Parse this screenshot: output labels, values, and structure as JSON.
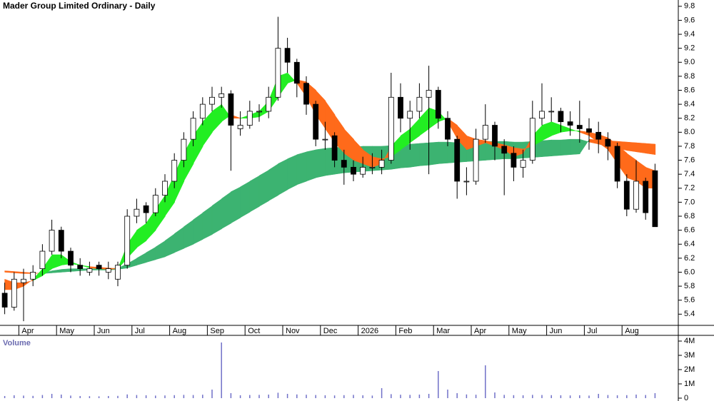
{
  "chart_data": [
    {
      "type": "candlestick",
      "title": "Mader Group Limited Ordinary - Daily",
      "categories": [
        null,
        null,
        "Apr",
        null,
        null,
        null,
        "May",
        null,
        null,
        null,
        "Jun",
        null,
        null,
        null,
        "Jul",
        null,
        null,
        null,
        "Aug",
        null,
        null,
        null,
        "Sep",
        null,
        null,
        null,
        "Oct",
        null,
        null,
        null,
        "Nov",
        null,
        null,
        null,
        "Dec",
        null,
        null,
        null,
        "2026",
        null,
        null,
        null,
        "Feb",
        null,
        null,
        null,
        "Mar",
        null,
        null,
        null,
        "Apr",
        null,
        null,
        null,
        "May",
        null,
        null,
        null,
        "Jun",
        null,
        null,
        null,
        "Jul",
        null,
        null,
        null,
        "Aug",
        null,
        null,
        null
      ],
      "open": [
        5.7,
        5.5,
        5.85,
        5.9,
        6.05,
        6.3,
        6.6,
        6.3,
        6.1,
        6.0,
        6.1,
        6.0,
        5.9,
        6.1,
        6.8,
        6.95,
        6.85,
        7.1,
        7.3,
        7.6,
        7.9,
        8.2,
        8.4,
        8.5,
        8.55,
        8.05,
        8.1,
        8.3,
        8.3,
        8.5,
        9.2,
        9.0,
        8.7,
        8.4,
        7.9,
        7.95,
        7.6,
        7.5,
        7.4,
        7.5,
        7.5,
        7.6,
        8.5,
        8.2,
        8.3,
        8.5,
        8.6,
        8.2,
        7.9,
        7.3,
        7.3,
        7.9,
        8.1,
        7.8,
        7.7,
        7.5,
        7.6,
        8.2,
        8.3,
        8.3,
        8.15,
        8.1,
        8.05,
        8.0,
        7.9,
        7.8,
        7.3,
        6.9,
        7.3,
        7.45
      ],
      "high": [
        5.85,
        6.0,
        6.05,
        6.1,
        6.4,
        6.75,
        6.65,
        6.35,
        6.2,
        6.15,
        6.15,
        6.15,
        6.15,
        6.9,
        7.05,
        7.0,
        7.2,
        7.4,
        7.7,
        8.0,
        8.3,
        8.5,
        8.65,
        8.65,
        8.6,
        8.3,
        8.45,
        8.4,
        8.65,
        9.65,
        9.35,
        9.05,
        8.8,
        8.45,
        8.15,
        8.0,
        7.75,
        7.6,
        7.65,
        7.7,
        7.75,
        8.85,
        8.7,
        8.45,
        8.7,
        8.95,
        8.65,
        8.3,
        7.95,
        7.5,
        8.05,
        8.4,
        8.15,
        7.9,
        7.8,
        7.75,
        8.45,
        8.7,
        8.5,
        8.35,
        8.3,
        8.45,
        8.2,
        8.15,
        8.0,
        7.85,
        7.4,
        7.6,
        7.35,
        7.55
      ],
      "low": [
        5.4,
        5.45,
        5.3,
        5.8,
        5.95,
        6.25,
        6.2,
        6.0,
        5.95,
        5.95,
        5.95,
        5.9,
        5.8,
        6.05,
        6.7,
        6.7,
        6.8,
        7.0,
        7.2,
        7.5,
        7.8,
        8.1,
        8.3,
        8.35,
        7.45,
        7.95,
        8.05,
        8.15,
        8.2,
        8.45,
        8.85,
        8.5,
        8.25,
        7.8,
        7.75,
        7.5,
        7.25,
        7.3,
        7.35,
        7.4,
        7.4,
        7.55,
        8.0,
        7.75,
        8.2,
        7.4,
        8.05,
        7.8,
        7.05,
        7.1,
        7.25,
        7.85,
        7.6,
        7.1,
        7.3,
        7.35,
        7.55,
        8.1,
        8.15,
        8.0,
        7.95,
        7.85,
        7.75,
        7.7,
        7.6,
        7.2,
        6.8,
        6.85,
        6.75,
        6.65
      ],
      "close": [
        5.5,
        5.9,
        5.9,
        6.0,
        6.3,
        6.6,
        6.3,
        6.1,
        6.05,
        6.05,
        6.05,
        6.05,
        6.1,
        6.8,
        6.9,
        6.85,
        7.1,
        7.3,
        7.6,
        7.9,
        8.2,
        8.4,
        8.5,
        8.55,
        8.1,
        8.1,
        8.3,
        8.3,
        8.5,
        9.2,
        9.0,
        8.7,
        8.4,
        7.9,
        7.9,
        7.6,
        7.5,
        7.4,
        7.5,
        7.5,
        7.6,
        8.5,
        8.2,
        8.3,
        8.5,
        8.6,
        8.2,
        7.9,
        7.3,
        7.3,
        7.9,
        8.1,
        7.8,
        7.7,
        7.5,
        7.6,
        8.2,
        8.3,
        8.3,
        8.15,
        8.1,
        8.05,
        8.0,
        7.9,
        7.8,
        7.3,
        6.9,
        7.3,
        6.85,
        6.65
      ],
      "bands": [
        {
          "a": [
            6.0,
            5.99,
            5.98,
            5.98,
            5.99,
            6.02,
            6.04,
            6.05,
            6.05,
            6.05,
            6.05,
            6.05,
            6.06,
            6.12,
            6.2,
            6.28,
            6.36,
            6.45,
            6.55,
            6.65,
            6.75,
            6.85,
            6.95,
            7.05,
            7.15,
            7.22,
            7.3,
            7.38,
            7.46,
            7.55,
            7.62,
            7.68,
            7.72,
            7.75,
            7.77,
            7.78,
            7.79,
            7.79,
            7.8,
            7.8,
            7.8,
            7.81,
            7.82,
            7.83,
            7.84,
            7.85,
            7.86,
            7.86,
            7.85,
            7.85,
            7.86,
            7.87,
            7.87,
            7.87,
            7.86,
            7.86,
            7.87,
            7.88,
            7.89,
            7.89,
            7.9,
            7.9,
            7.86,
            7.83,
            7.8,
            7.77,
            7.74,
            7.72,
            7.7,
            7.68
          ],
          "b": [
            6.02,
            6.01,
            6.0,
            5.99,
            5.98,
            5.99,
            6.0,
            6.01,
            6.02,
            6.03,
            6.03,
            6.03,
            6.04,
            6.06,
            6.1,
            6.14,
            6.18,
            6.22,
            6.28,
            6.34,
            6.4,
            6.47,
            6.54,
            6.62,
            6.7,
            6.78,
            6.86,
            6.94,
            7.02,
            7.1,
            7.18,
            7.25,
            7.3,
            7.35,
            7.38,
            7.4,
            7.42,
            7.43,
            7.44,
            7.45,
            7.46,
            7.47,
            7.49,
            7.5,
            7.52,
            7.53,
            7.55,
            7.56,
            7.57,
            7.58,
            7.59,
            7.6,
            7.61,
            7.62,
            7.62,
            7.63,
            7.64,
            7.65,
            7.66,
            7.67,
            7.68,
            7.69,
            7.9,
            7.89,
            7.88,
            7.87,
            7.86,
            7.85,
            7.84,
            7.83
          ],
          "up_color": "#3cb371",
          "down_color": "#ff6a1a"
        },
        {
          "a": [
            5.75,
            5.75,
            5.8,
            5.9,
            6.05,
            6.25,
            6.25,
            6.15,
            6.1,
            6.06,
            6.05,
            6.04,
            6.05,
            6.4,
            6.6,
            6.7,
            6.9,
            7.1,
            7.4,
            7.7,
            7.95,
            8.15,
            8.3,
            8.4,
            8.2,
            8.2,
            8.25,
            8.3,
            8.45,
            8.8,
            8.85,
            8.7,
            8.5,
            8.25,
            8.05,
            7.85,
            7.7,
            7.6,
            7.55,
            7.5,
            7.55,
            7.8,
            7.95,
            8.05,
            8.2,
            8.35,
            8.3,
            8.15,
            7.9,
            7.75,
            7.8,
            7.85,
            7.8,
            7.75,
            7.65,
            7.7,
            7.95,
            8.1,
            8.15,
            8.1,
            8.05,
            8.0,
            7.95,
            7.85,
            7.75,
            7.55,
            7.35,
            7.3,
            7.2,
            7.2
          ],
          "b": [
            5.9,
            5.85,
            5.85,
            5.88,
            5.95,
            6.05,
            6.1,
            6.12,
            6.1,
            6.08,
            6.07,
            6.06,
            6.05,
            6.2,
            6.35,
            6.45,
            6.6,
            6.8,
            7.0,
            7.3,
            7.55,
            7.8,
            8.0,
            8.15,
            8.25,
            8.2,
            8.2,
            8.22,
            8.3,
            8.5,
            8.7,
            8.75,
            8.72,
            8.6,
            8.45,
            8.25,
            8.05,
            7.9,
            7.75,
            7.65,
            7.62,
            7.65,
            7.75,
            7.85,
            7.95,
            8.05,
            8.15,
            8.2,
            8.1,
            7.95,
            7.9,
            7.88,
            7.85,
            7.82,
            7.78,
            7.76,
            7.8,
            7.88,
            7.95,
            8.0,
            8.02,
            8.02,
            8.0,
            7.97,
            7.92,
            7.82,
            7.7,
            7.6,
            7.5,
            7.45
          ],
          "up_color": "#22ee22",
          "down_color": "#ff6a1a"
        }
      ],
      "ylim": [
        5.24,
        9.89
      ],
      "yticks": [
        9.8,
        9.6,
        9.4,
        9.2,
        {
          "value": 9,
          "label": "9.0"
        },
        8.8,
        8.6,
        8.4,
        8.2,
        {
          "value": 8,
          "label": "8.0"
        },
        7.8,
        7.6,
        7.4,
        7.2,
        {
          "value": 7,
          "label": "7.0"
        },
        6.8,
        6.6,
        6.4,
        6.2,
        {
          "value": 6,
          "label": "6.0"
        },
        5.8,
        5.6,
        5.4
      ],
      "up_color": "#ffffff",
      "down_color": "#000000"
    },
    {
      "type": "volume",
      "title": "Volume",
      "values": [
        150000,
        200000,
        180000,
        160000,
        220000,
        300000,
        250000,
        180000,
        150000,
        140000,
        130000,
        150000,
        160000,
        260000,
        220000,
        200000,
        180000,
        190000,
        210000,
        230000,
        220000,
        240000,
        600000,
        3900000,
        350000,
        200000,
        220000,
        230000,
        250000,
        380000,
        300000,
        260000,
        240000,
        220000,
        200000,
        190000,
        210000,
        230000,
        200000,
        180000,
        700000,
        280000,
        240000,
        230000,
        250000,
        300000,
        1900000,
        600000,
        350000,
        260000,
        240000,
        2300000,
        400000,
        230000,
        210000,
        200000,
        230000,
        220000,
        210000,
        200000,
        190000,
        200000,
        180000,
        300000,
        220000,
        200000,
        210000,
        250000,
        220000,
        350000
      ],
      "color": "#7070c8",
      "ylim": [
        0,
        4400000
      ],
      "yticks": [
        {
          "value": 4000000,
          "label": "4M"
        },
        {
          "value": 3000000,
          "label": "3M"
        },
        {
          "value": 2000000,
          "label": "2M"
        },
        {
          "value": 1000000,
          "label": "1M"
        },
        0
      ]
    }
  ]
}
